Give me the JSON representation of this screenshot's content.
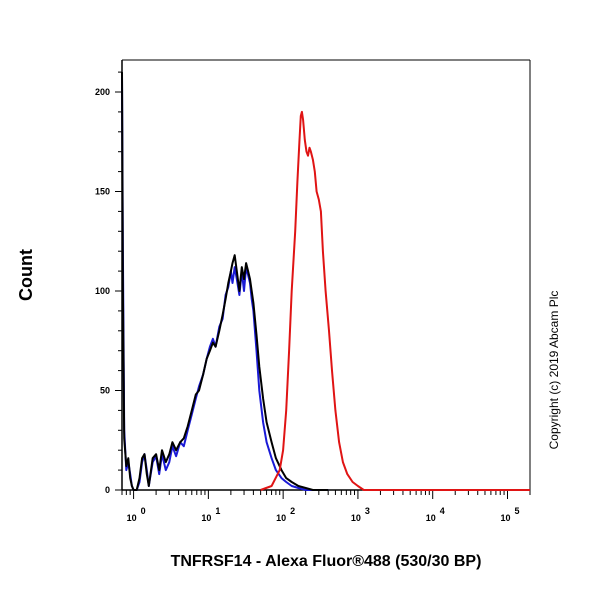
{
  "chart_data": {
    "type": "line",
    "xlabel": "TNFRSF14 - Alexa Fluor®488 (530/30 BP)",
    "ylabel": "Count",
    "x_scale": "log",
    "xlim": [
      0.7,
      200000
    ],
    "ylim": [
      0,
      210
    ],
    "x_ticks": [
      {
        "base": "10",
        "exp": "0",
        "value": 1
      },
      {
        "base": "10",
        "exp": "1",
        "value": 10
      },
      {
        "base": "10",
        "exp": "2",
        "value": 100
      },
      {
        "base": "10",
        "exp": "3",
        "value": 1000
      },
      {
        "base": "10",
        "exp": "4",
        "value": 10000
      },
      {
        "base": "10",
        "exp": "5",
        "value": 100000
      }
    ],
    "y_ticks": [
      0,
      50,
      100,
      150,
      200
    ],
    "grid": false,
    "legend": "none",
    "series": [
      {
        "color": "#1a1ad6",
        "points": [
          [
            0.7,
            208
          ],
          [
            0.72,
            120
          ],
          [
            0.75,
            30
          ],
          [
            0.8,
            10
          ],
          [
            0.85,
            14
          ],
          [
            0.9,
            8
          ],
          [
            0.95,
            2
          ],
          [
            1.0,
            0
          ],
          [
            1.1,
            0
          ],
          [
            1.2,
            4
          ],
          [
            1.3,
            14
          ],
          [
            1.4,
            18
          ],
          [
            1.5,
            10
          ],
          [
            1.6,
            2
          ],
          [
            1.8,
            14
          ],
          [
            2.0,
            17
          ],
          [
            2.2,
            8
          ],
          [
            2.4,
            18
          ],
          [
            2.7,
            10
          ],
          [
            3.0,
            14
          ],
          [
            3.3,
            22
          ],
          [
            3.7,
            17
          ],
          [
            4.2,
            24
          ],
          [
            4.7,
            22
          ],
          [
            5.3,
            30
          ],
          [
            6.0,
            38
          ],
          [
            6.8,
            46
          ],
          [
            7.5,
            52
          ],
          [
            8.5,
            58
          ],
          [
            9.5,
            66
          ],
          [
            10.5,
            72
          ],
          [
            11.5,
            76
          ],
          [
            12.5,
            72
          ],
          [
            14,
            82
          ],
          [
            15.5,
            86
          ],
          [
            17,
            98
          ],
          [
            18.5,
            102
          ],
          [
            20,
            110
          ],
          [
            21,
            104
          ],
          [
            22.5,
            112
          ],
          [
            24,
            106
          ],
          [
            26,
            98
          ],
          [
            28,
            110
          ],
          [
            30,
            100
          ],
          [
            32,
            112
          ],
          [
            34,
            108
          ],
          [
            36,
            104
          ],
          [
            38,
            96
          ],
          [
            40,
            90
          ],
          [
            44,
            70
          ],
          [
            48,
            50
          ],
          [
            54,
            34
          ],
          [
            60,
            24
          ],
          [
            70,
            16
          ],
          [
            80,
            10
          ],
          [
            95,
            6
          ],
          [
            110,
            4
          ],
          [
            130,
            2
          ],
          [
            160,
            1
          ],
          [
            200,
            0
          ],
          [
            400,
            0
          ]
        ]
      },
      {
        "color": "#000000",
        "points": [
          [
            0.7,
            210
          ],
          [
            0.72,
            100
          ],
          [
            0.75,
            26
          ],
          [
            0.8,
            12
          ],
          [
            0.85,
            16
          ],
          [
            0.9,
            6
          ],
          [
            0.95,
            2
          ],
          [
            1.0,
            0
          ],
          [
            1.1,
            0
          ],
          [
            1.2,
            6
          ],
          [
            1.3,
            16
          ],
          [
            1.4,
            18
          ],
          [
            1.5,
            8
          ],
          [
            1.6,
            2
          ],
          [
            1.8,
            16
          ],
          [
            2.0,
            18
          ],
          [
            2.2,
            10
          ],
          [
            2.4,
            20
          ],
          [
            2.7,
            14
          ],
          [
            3.0,
            18
          ],
          [
            3.3,
            24
          ],
          [
            3.7,
            20
          ],
          [
            4.2,
            24
          ],
          [
            4.7,
            26
          ],
          [
            5.3,
            32
          ],
          [
            6.0,
            40
          ],
          [
            6.8,
            48
          ],
          [
            7.5,
            50
          ],
          [
            8.5,
            58
          ],
          [
            9.5,
            66
          ],
          [
            10.5,
            70
          ],
          [
            11.5,
            74
          ],
          [
            12.5,
            72
          ],
          [
            14,
            80
          ],
          [
            15.5,
            88
          ],
          [
            17,
            96
          ],
          [
            18.5,
            104
          ],
          [
            20,
            110
          ],
          [
            21,
            114
          ],
          [
            22.5,
            118
          ],
          [
            24,
            110
          ],
          [
            26,
            100
          ],
          [
            28,
            112
          ],
          [
            30,
            106
          ],
          [
            32,
            114
          ],
          [
            34,
            110
          ],
          [
            36,
            106
          ],
          [
            38,
            100
          ],
          [
            40,
            94
          ],
          [
            44,
            78
          ],
          [
            48,
            62
          ],
          [
            54,
            46
          ],
          [
            60,
            34
          ],
          [
            70,
            24
          ],
          [
            80,
            16
          ],
          [
            95,
            10
          ],
          [
            110,
            6
          ],
          [
            130,
            4
          ],
          [
            160,
            2
          ],
          [
            200,
            1
          ],
          [
            250,
            0
          ],
          [
            400,
            0
          ]
        ]
      },
      {
        "color": "#e01414",
        "points": [
          [
            50,
            0
          ],
          [
            70,
            2
          ],
          [
            90,
            10
          ],
          [
            100,
            20
          ],
          [
            110,
            40
          ],
          [
            120,
            70
          ],
          [
            130,
            100
          ],
          [
            145,
            130
          ],
          [
            155,
            155
          ],
          [
            165,
            175
          ],
          [
            172,
            188
          ],
          [
            178,
            190
          ],
          [
            185,
            186
          ],
          [
            195,
            176
          ],
          [
            205,
            170
          ],
          [
            215,
            168
          ],
          [
            225,
            172
          ],
          [
            235,
            170
          ],
          [
            250,
            166
          ],
          [
            265,
            160
          ],
          [
            280,
            150
          ],
          [
            300,
            146
          ],
          [
            320,
            140
          ],
          [
            340,
            120
          ],
          [
            370,
            100
          ],
          [
            410,
            80
          ],
          [
            450,
            60
          ],
          [
            500,
            40
          ],
          [
            560,
            24
          ],
          [
            630,
            14
          ],
          [
            720,
            8
          ],
          [
            850,
            4
          ],
          [
            1000,
            2
          ],
          [
            1200,
            0
          ],
          [
            1600,
            0
          ],
          [
            3000,
            0
          ],
          [
            10000,
            0
          ],
          [
            100000,
            0
          ],
          [
            200000,
            0
          ]
        ]
      }
    ]
  },
  "copyright": "Copyright (c) 2019 Abcam Plc"
}
